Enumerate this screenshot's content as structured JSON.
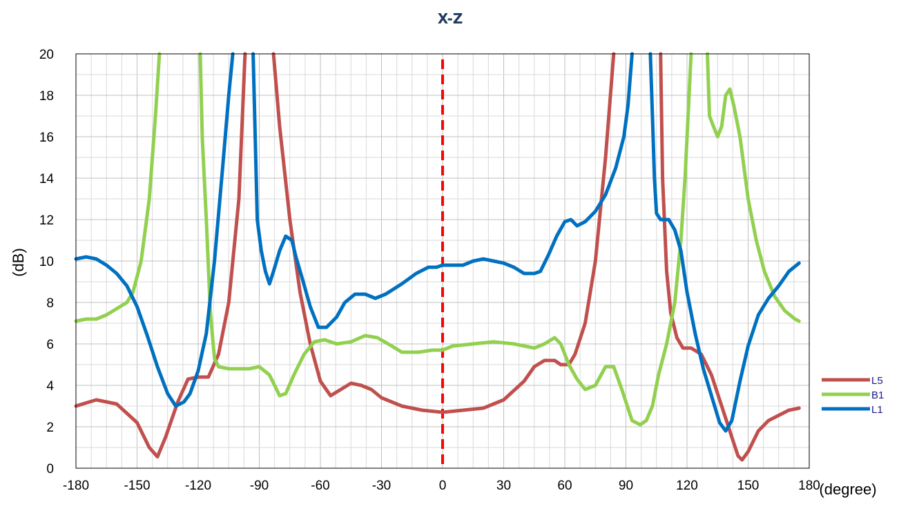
{
  "chart_data": {
    "type": "line",
    "title": "X-Z",
    "xlabel": "(degree)",
    "ylabel": "(dB)",
    "xlim": [
      -180,
      180
    ],
    "ylim": [
      0,
      20
    ],
    "xticks": [
      -180,
      -150,
      -120,
      -90,
      -60,
      -30,
      0,
      30,
      60,
      90,
      120,
      150,
      180
    ],
    "yticks": [
      0,
      2,
      4,
      6,
      8,
      10,
      12,
      14,
      16,
      18,
      20
    ],
    "grid": true,
    "legend_position": "right",
    "reference_line": {
      "x": 0,
      "color": "#ff0000",
      "style": "dashed"
    },
    "series": [
      {
        "name": "L5",
        "color": "#c0504d",
        "points": [
          [
            -180,
            3.0
          ],
          [
            -170,
            3.3
          ],
          [
            -160,
            3.1
          ],
          [
            -150,
            2.2
          ],
          [
            -144,
            1.0
          ],
          [
            -140,
            0.55
          ],
          [
            -136,
            1.5
          ],
          [
            -130,
            3.2
          ],
          [
            -125,
            4.3
          ],
          [
            -120,
            4.4
          ],
          [
            -115,
            4.4
          ],
          [
            -110,
            5.5
          ],
          [
            -105,
            8.0
          ],
          [
            -100,
            13.0
          ],
          [
            -97,
            20.0
          ],
          [
            null,
            null
          ],
          [
            -83,
            20.0
          ],
          [
            -80,
            16.5
          ],
          [
            -75,
            12.0
          ],
          [
            -70,
            8.5
          ],
          [
            -65,
            6.0
          ],
          [
            -60,
            4.2
          ],
          [
            -55,
            3.5
          ],
          [
            -50,
            3.8
          ],
          [
            -45,
            4.1
          ],
          [
            -40,
            4.0
          ],
          [
            -35,
            3.8
          ],
          [
            -30,
            3.4
          ],
          [
            -20,
            3.0
          ],
          [
            -10,
            2.8
          ],
          [
            0,
            2.7
          ],
          [
            10,
            2.8
          ],
          [
            20,
            2.9
          ],
          [
            30,
            3.3
          ],
          [
            40,
            4.2
          ],
          [
            45,
            4.9
          ],
          [
            50,
            5.2
          ],
          [
            55,
            5.2
          ],
          [
            58,
            5.0
          ],
          [
            62,
            5.0
          ],
          [
            65,
            5.5
          ],
          [
            70,
            7.0
          ],
          [
            75,
            10.0
          ],
          [
            80,
            15.0
          ],
          [
            84,
            20.0
          ],
          [
            null,
            null
          ],
          [
            107,
            20.0
          ],
          [
            108,
            14.0
          ],
          [
            110,
            9.5
          ],
          [
            112,
            7.5
          ],
          [
            115,
            6.3
          ],
          [
            118,
            5.8
          ],
          [
            122,
            5.8
          ],
          [
            127,
            5.5
          ],
          [
            132,
            4.5
          ],
          [
            137,
            3.0
          ],
          [
            142,
            1.5
          ],
          [
            145,
            0.6
          ],
          [
            147,
            0.4
          ],
          [
            150,
            0.8
          ],
          [
            155,
            1.8
          ],
          [
            160,
            2.3
          ],
          [
            170,
            2.8
          ],
          [
            175,
            2.9
          ]
        ]
      },
      {
        "name": "B1",
        "color": "#92d050",
        "points": [
          [
            -180,
            7.1
          ],
          [
            -175,
            7.2
          ],
          [
            -170,
            7.2
          ],
          [
            -165,
            7.4
          ],
          [
            -160,
            7.7
          ],
          [
            -155,
            8.0
          ],
          [
            -152,
            8.5
          ],
          [
            -148,
            10.0
          ],
          [
            -144,
            13.0
          ],
          [
            -141,
            17.0
          ],
          [
            -139,
            20.0
          ],
          [
            null,
            null
          ],
          [
            -119,
            20.0
          ],
          [
            -118,
            16.0
          ],
          [
            -116,
            12.0
          ],
          [
            -114,
            7.5
          ],
          [
            -112,
            5.3
          ],
          [
            -110,
            4.9
          ],
          [
            -105,
            4.8
          ],
          [
            -100,
            4.8
          ],
          [
            -95,
            4.8
          ],
          [
            -90,
            4.9
          ],
          [
            -85,
            4.5
          ],
          [
            -80,
            3.5
          ],
          [
            -77,
            3.6
          ],
          [
            -73,
            4.5
          ],
          [
            -68,
            5.5
          ],
          [
            -63,
            6.1
          ],
          [
            -58,
            6.2
          ],
          [
            -52,
            6.0
          ],
          [
            -45,
            6.1
          ],
          [
            -38,
            6.4
          ],
          [
            -32,
            6.3
          ],
          [
            -25,
            5.9
          ],
          [
            -20,
            5.6
          ],
          [
            -12,
            5.6
          ],
          [
            -5,
            5.7
          ],
          [
            0,
            5.7
          ],
          [
            5,
            5.9
          ],
          [
            15,
            6.0
          ],
          [
            25,
            6.1
          ],
          [
            35,
            6.0
          ],
          [
            45,
            5.8
          ],
          [
            50,
            6.0
          ],
          [
            55,
            6.3
          ],
          [
            58,
            6.0
          ],
          [
            62,
            5.0
          ],
          [
            66,
            4.3
          ],
          [
            70,
            3.8
          ],
          [
            75,
            4.0
          ],
          [
            80,
            4.9
          ],
          [
            84,
            4.9
          ],
          [
            88,
            3.8
          ],
          [
            93,
            2.3
          ],
          [
            97,
            2.1
          ],
          [
            100,
            2.3
          ],
          [
            103,
            3.0
          ],
          [
            106,
            4.5
          ],
          [
            110,
            6.0
          ],
          [
            114,
            8.0
          ],
          [
            117,
            11.0
          ],
          [
            119,
            14.0
          ],
          [
            121,
            18.0
          ],
          [
            122,
            20.0
          ],
          [
            null,
            null
          ],
          [
            130,
            20.0
          ],
          [
            131,
            17.0
          ],
          [
            133,
            16.5
          ],
          [
            135,
            16.0
          ],
          [
            137,
            16.5
          ],
          [
            139,
            18.0
          ],
          [
            141,
            18.3
          ],
          [
            143,
            17.5
          ],
          [
            146,
            16.0
          ],
          [
            150,
            13.0
          ],
          [
            154,
            11.0
          ],
          [
            158,
            9.5
          ],
          [
            163,
            8.3
          ],
          [
            168,
            7.6
          ],
          [
            173,
            7.2
          ],
          [
            175,
            7.1
          ]
        ]
      },
      {
        "name": "L1",
        "color": "#0070c0",
        "points": [
          [
            -180,
            10.1
          ],
          [
            -175,
            10.2
          ],
          [
            -170,
            10.1
          ],
          [
            -165,
            9.8
          ],
          [
            -160,
            9.4
          ],
          [
            -155,
            8.8
          ],
          [
            -150,
            7.8
          ],
          [
            -145,
            6.4
          ],
          [
            -140,
            4.9
          ],
          [
            -135,
            3.6
          ],
          [
            -131,
            3.0
          ],
          [
            -127,
            3.2
          ],
          [
            -124,
            3.6
          ],
          [
            -120,
            4.7
          ],
          [
            -116,
            6.5
          ],
          [
            -112,
            10.0
          ],
          [
            -108,
            14.5
          ],
          [
            -105,
            18.0
          ],
          [
            -103,
            20.0
          ],
          [
            null,
            null
          ],
          [
            -93,
            20.0
          ],
          [
            -92,
            16.0
          ],
          [
            -91,
            12.0
          ],
          [
            -89,
            10.5
          ],
          [
            -87,
            9.5
          ],
          [
            -85,
            8.9
          ],
          [
            -83,
            9.5
          ],
          [
            -80,
            10.5
          ],
          [
            -77,
            11.2
          ],
          [
            -74,
            11.0
          ],
          [
            -72,
            10.2
          ],
          [
            -69,
            9.2
          ],
          [
            -65,
            7.8
          ],
          [
            -61,
            6.8
          ],
          [
            -57,
            6.8
          ],
          [
            -52,
            7.3
          ],
          [
            -48,
            8.0
          ],
          [
            -43,
            8.4
          ],
          [
            -38,
            8.4
          ],
          [
            -33,
            8.2
          ],
          [
            -28,
            8.4
          ],
          [
            -20,
            8.9
          ],
          [
            -13,
            9.4
          ],
          [
            -7,
            9.7
          ],
          [
            -3,
            9.7
          ],
          [
            0,
            9.8
          ],
          [
            5,
            9.8
          ],
          [
            10,
            9.8
          ],
          [
            15,
            10.0
          ],
          [
            20,
            10.1
          ],
          [
            25,
            10.0
          ],
          [
            30,
            9.9
          ],
          [
            35,
            9.7
          ],
          [
            40,
            9.4
          ],
          [
            45,
            9.4
          ],
          [
            48,
            9.5
          ],
          [
            52,
            10.3
          ],
          [
            56,
            11.2
          ],
          [
            60,
            11.9
          ],
          [
            63,
            12.0
          ],
          [
            66,
            11.7
          ],
          [
            70,
            11.9
          ],
          [
            75,
            12.4
          ],
          [
            80,
            13.2
          ],
          [
            85,
            14.5
          ],
          [
            89,
            16.0
          ],
          [
            91,
            17.5
          ],
          [
            93,
            20.0
          ],
          [
            null,
            null
          ],
          [
            102,
            20.0
          ],
          [
            103,
            17.0
          ],
          [
            104,
            14.0
          ],
          [
            105,
            12.3
          ],
          [
            107,
            12.0
          ],
          [
            111,
            12.0
          ],
          [
            114,
            11.5
          ],
          [
            117,
            10.5
          ],
          [
            120,
            8.5
          ],
          [
            124,
            6.5
          ],
          [
            128,
            4.8
          ],
          [
            132,
            3.5
          ],
          [
            136,
            2.2
          ],
          [
            139,
            1.8
          ],
          [
            142,
            2.3
          ],
          [
            146,
            4.2
          ],
          [
            150,
            5.9
          ],
          [
            155,
            7.4
          ],
          [
            160,
            8.2
          ],
          [
            165,
            8.8
          ],
          [
            170,
            9.5
          ],
          [
            175,
            9.9
          ]
        ]
      }
    ]
  }
}
